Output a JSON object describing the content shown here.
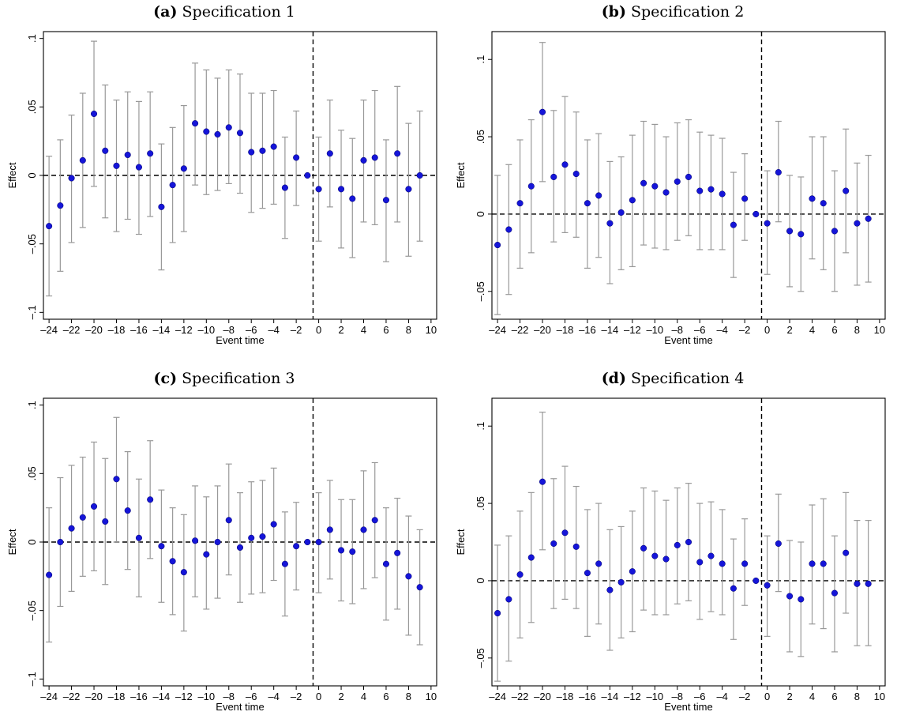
{
  "chart_data": [
    {
      "type": "scatter",
      "panel_label": "(a)",
      "title": "Specification 1",
      "xlabel": "Event time",
      "ylabel": "Effect",
      "xlim": [
        -24.5,
        10.5
      ],
      "ylim": [
        -0.105,
        0.105
      ],
      "xticks": [
        -24,
        -22,
        -20,
        -18,
        -16,
        -14,
        -12,
        -10,
        -8,
        -6,
        -4,
        -2,
        0,
        2,
        4,
        6,
        8,
        10
      ],
      "xtick_labels": [
        "–24",
        "–22",
        "–20",
        "–18",
        "–16",
        "–14",
        "–12",
        "–10",
        "–8",
        "–6",
        "–4",
        "–2",
        "0",
        "2",
        "4",
        "6",
        "8",
        "10"
      ],
      "yticks": [
        -0.1,
        -0.05,
        0,
        0.05,
        0.1
      ],
      "ytick_labels": [
        "–.1",
        "–.05",
        "0",
        ".05",
        ".1"
      ],
      "reference_line_x": -0.5,
      "x": [
        -24,
        -23,
        -22,
        -21,
        -20,
        -19,
        -18,
        -17,
        -16,
        -15,
        -14,
        -13,
        -12,
        -11,
        -10,
        -9,
        -8,
        -7,
        -6,
        -5,
        -4,
        -3,
        -2,
        -1,
        0,
        1,
        2,
        3,
        4,
        5,
        6,
        7,
        8,
        9
      ],
      "estimate": [
        -0.037,
        -0.022,
        -0.002,
        0.011,
        0.045,
        0.018,
        0.007,
        0.015,
        0.006,
        0.016,
        -0.023,
        -0.007,
        0.005,
        0.038,
        0.032,
        0.03,
        0.035,
        0.031,
        0.017,
        0.018,
        0.021,
        -0.009,
        0.013,
        0.0,
        -0.01,
        0.016,
        -0.01,
        -0.017,
        0.011,
        0.013,
        -0.018,
        0.016,
        -0.01,
        0.0
      ],
      "ci_low": [
        -0.088,
        -0.07,
        -0.049,
        -0.038,
        -0.008,
        -0.031,
        -0.041,
        -0.032,
        -0.043,
        -0.03,
        -0.069,
        -0.049,
        -0.041,
        -0.007,
        -0.014,
        -0.011,
        -0.006,
        -0.013,
        -0.027,
        -0.024,
        -0.021,
        -0.046,
        -0.022,
        0.0,
        -0.048,
        -0.023,
        -0.053,
        -0.06,
        -0.034,
        -0.036,
        -0.063,
        -0.034,
        -0.059,
        -0.048
      ],
      "ci_high": [
        0.014,
        0.026,
        0.044,
        0.06,
        0.098,
        0.066,
        0.055,
        0.061,
        0.054,
        0.061,
        0.023,
        0.035,
        0.051,
        0.082,
        0.077,
        0.071,
        0.077,
        0.074,
        0.06,
        0.06,
        0.062,
        0.028,
        0.047,
        0.0,
        0.028,
        0.055,
        0.033,
        0.027,
        0.055,
        0.062,
        0.026,
        0.065,
        0.038,
        0.047
      ]
    },
    {
      "type": "scatter",
      "panel_label": "(b)",
      "title": "Specification 2",
      "xlabel": "Event time",
      "ylabel": "Effect",
      "xlim": [
        -24.5,
        10.5
      ],
      "ylim": [
        -0.068,
        0.118
      ],
      "xticks": [
        -24,
        -22,
        -20,
        -18,
        -16,
        -14,
        -12,
        -10,
        -8,
        -6,
        -4,
        -2,
        0,
        2,
        4,
        6,
        8,
        10
      ],
      "xtick_labels": [
        "–24",
        "–22",
        "–20",
        "–18",
        "–16",
        "–14",
        "–12",
        "–10",
        "–8",
        "–6",
        "–4",
        "–2",
        "0",
        "2",
        "4",
        "6",
        "8",
        "10"
      ],
      "yticks": [
        -0.05,
        0,
        0.05,
        0.1
      ],
      "ytick_labels": [
        "–.05",
        "0",
        ".05",
        ".1"
      ],
      "reference_line_x": -0.5,
      "x": [
        -24,
        -23,
        -22,
        -21,
        -20,
        -19,
        -18,
        -17,
        -16,
        -15,
        -14,
        -13,
        -12,
        -11,
        -10,
        -9,
        -8,
        -7,
        -6,
        -5,
        -4,
        -3,
        -2,
        -1,
        0,
        1,
        2,
        3,
        4,
        5,
        6,
        7,
        8,
        9
      ],
      "estimate": [
        -0.02,
        -0.01,
        0.007,
        0.018,
        0.066,
        0.024,
        0.032,
        0.026,
        0.007,
        0.012,
        -0.006,
        0.001,
        0.009,
        0.02,
        0.018,
        0.014,
        0.021,
        0.024,
        0.015,
        0.016,
        0.013,
        -0.007,
        0.01,
        0.0,
        -0.006,
        0.027,
        -0.011,
        -0.013,
        0.01,
        0.007,
        -0.011,
        0.015,
        -0.006,
        -0.003
      ],
      "ci_low": [
        -0.065,
        -0.052,
        -0.035,
        -0.025,
        0.021,
        -0.018,
        -0.012,
        -0.015,
        -0.035,
        -0.028,
        -0.045,
        -0.036,
        -0.034,
        -0.02,
        -0.022,
        -0.023,
        -0.017,
        -0.014,
        -0.023,
        -0.023,
        -0.023,
        -0.041,
        -0.017,
        0.0,
        -0.039,
        -0.005,
        -0.047,
        -0.05,
        -0.029,
        -0.036,
        -0.05,
        -0.025,
        -0.046,
        -0.044
      ],
      "ci_high": [
        0.025,
        0.032,
        0.048,
        0.061,
        0.111,
        0.067,
        0.076,
        0.066,
        0.048,
        0.052,
        0.034,
        0.037,
        0.051,
        0.06,
        0.058,
        0.05,
        0.059,
        0.061,
        0.053,
        0.051,
        0.049,
        0.027,
        0.039,
        0.0,
        0.028,
        0.06,
        0.025,
        0.024,
        0.05,
        0.05,
        0.028,
        0.055,
        0.033,
        0.038
      ]
    },
    {
      "type": "scatter",
      "panel_label": "(c)",
      "title": "Specification 3",
      "xlabel": "Event time",
      "ylabel": "Effect",
      "xlim": [
        -24.5,
        10.5
      ],
      "ylim": [
        -0.105,
        0.105
      ],
      "xticks": [
        -24,
        -22,
        -20,
        -18,
        -16,
        -14,
        -12,
        -10,
        -8,
        -6,
        -4,
        -2,
        0,
        2,
        4,
        6,
        8,
        10
      ],
      "xtick_labels": [
        "–24",
        "–22",
        "–20",
        "–18",
        "–16",
        "–14",
        "–12",
        "–10",
        "–8",
        "–6",
        "–4",
        "–2",
        "0",
        "2",
        "4",
        "6",
        "8",
        "10"
      ],
      "yticks": [
        -0.1,
        -0.05,
        0,
        0.05,
        0.1
      ],
      "ytick_labels": [
        "–.1",
        "–.05",
        "0",
        ".05",
        ".1"
      ],
      "reference_line_x": -0.5,
      "x": [
        -24,
        -23,
        -22,
        -21,
        -20,
        -19,
        -18,
        -17,
        -16,
        -15,
        -14,
        -13,
        -12,
        -11,
        -10,
        -9,
        -8,
        -7,
        -6,
        -5,
        -4,
        -3,
        -2,
        -1,
        0,
        1,
        2,
        3,
        4,
        5,
        6,
        7,
        8,
        9
      ],
      "estimate": [
        -0.024,
        0.0,
        0.01,
        0.018,
        0.026,
        0.015,
        0.046,
        0.023,
        0.003,
        0.031,
        -0.003,
        -0.014,
        -0.022,
        0.001,
        -0.009,
        0.0,
        0.016,
        -0.004,
        0.003,
        0.004,
        0.013,
        -0.016,
        -0.003,
        0.0,
        0.0,
        0.009,
        -0.006,
        -0.007,
        0.009,
        0.016,
        -0.016,
        -0.008,
        -0.025,
        -0.033
      ],
      "ci_low": [
        -0.073,
        -0.047,
        -0.036,
        -0.025,
        -0.021,
        -0.031,
        0.0,
        -0.02,
        -0.04,
        -0.012,
        -0.044,
        -0.053,
        -0.065,
        -0.04,
        -0.049,
        -0.041,
        -0.024,
        -0.044,
        -0.038,
        -0.037,
        -0.028,
        -0.054,
        -0.035,
        0.0,
        -0.037,
        -0.027,
        -0.043,
        -0.045,
        -0.034,
        -0.026,
        -0.057,
        -0.049,
        -0.068,
        -0.075
      ],
      "ci_high": [
        0.025,
        0.047,
        0.056,
        0.062,
        0.073,
        0.061,
        0.091,
        0.066,
        0.046,
        0.074,
        0.038,
        0.025,
        0.02,
        0.041,
        0.033,
        0.041,
        0.057,
        0.036,
        0.044,
        0.045,
        0.054,
        0.022,
        0.029,
        0.0,
        0.036,
        0.045,
        0.031,
        0.031,
        0.052,
        0.058,
        0.025,
        0.032,
        0.019,
        0.009
      ]
    },
    {
      "type": "scatter",
      "panel_label": "(d)",
      "title": "Specification 4",
      "xlabel": "Event time",
      "ylabel": "Effect",
      "xlim": [
        -24.5,
        10.5
      ],
      "ylim": [
        -0.068,
        0.118
      ],
      "xticks": [
        -24,
        -22,
        -20,
        -18,
        -16,
        -14,
        -12,
        -10,
        -8,
        -6,
        -4,
        -2,
        0,
        2,
        4,
        6,
        8,
        10
      ],
      "xtick_labels": [
        "–24",
        "–22",
        "–20",
        "–18",
        "–16",
        "–14",
        "–12",
        "–10",
        "–8",
        "–6",
        "–4",
        "–2",
        "0",
        "2",
        "4",
        "6",
        "8",
        "10"
      ],
      "yticks": [
        -0.05,
        0,
        0.05,
        0.1
      ],
      "ytick_labels": [
        "–.05",
        "0",
        ".05",
        ".1"
      ],
      "reference_line_x": -0.5,
      "x": [
        -24,
        -23,
        -22,
        -21,
        -20,
        -19,
        -18,
        -17,
        -16,
        -15,
        -14,
        -13,
        -12,
        -11,
        -10,
        -9,
        -8,
        -7,
        -6,
        -5,
        -4,
        -3,
        -2,
        -1,
        0,
        1,
        2,
        3,
        4,
        5,
        6,
        7,
        8,
        9
      ],
      "estimate": [
        -0.021,
        -0.012,
        0.004,
        0.015,
        0.064,
        0.024,
        0.031,
        0.022,
        0.005,
        0.011,
        -0.006,
        -0.001,
        0.006,
        0.021,
        0.016,
        0.014,
        0.023,
        0.025,
        0.012,
        0.016,
        0.011,
        -0.005,
        0.011,
        0.0,
        -0.003,
        0.024,
        -0.01,
        -0.012,
        0.011,
        0.011,
        -0.008,
        0.018,
        -0.002,
        -0.002
      ],
      "ci_low": [
        -0.065,
        -0.052,
        -0.037,
        -0.027,
        0.02,
        -0.018,
        -0.012,
        -0.018,
        -0.036,
        -0.028,
        -0.045,
        -0.037,
        -0.033,
        -0.019,
        -0.022,
        -0.022,
        -0.015,
        -0.013,
        -0.025,
        -0.02,
        -0.022,
        -0.038,
        -0.016,
        0.0,
        -0.036,
        -0.007,
        -0.046,
        -0.049,
        -0.028,
        -0.031,
        -0.046,
        -0.021,
        -0.042,
        -0.042
      ],
      "ci_high": [
        0.023,
        0.029,
        0.045,
        0.057,
        0.109,
        0.066,
        0.074,
        0.061,
        0.046,
        0.05,
        0.033,
        0.035,
        0.045,
        0.06,
        0.058,
        0.052,
        0.06,
        0.063,
        0.05,
        0.051,
        0.046,
        0.027,
        0.04,
        0.0,
        0.029,
        0.056,
        0.026,
        0.025,
        0.049,
        0.053,
        0.029,
        0.057,
        0.039,
        0.039
      ]
    }
  ],
  "colors": {
    "point": "#1515d8",
    "ci": "#999999",
    "axis": "#000000",
    "reference": "#000000"
  }
}
